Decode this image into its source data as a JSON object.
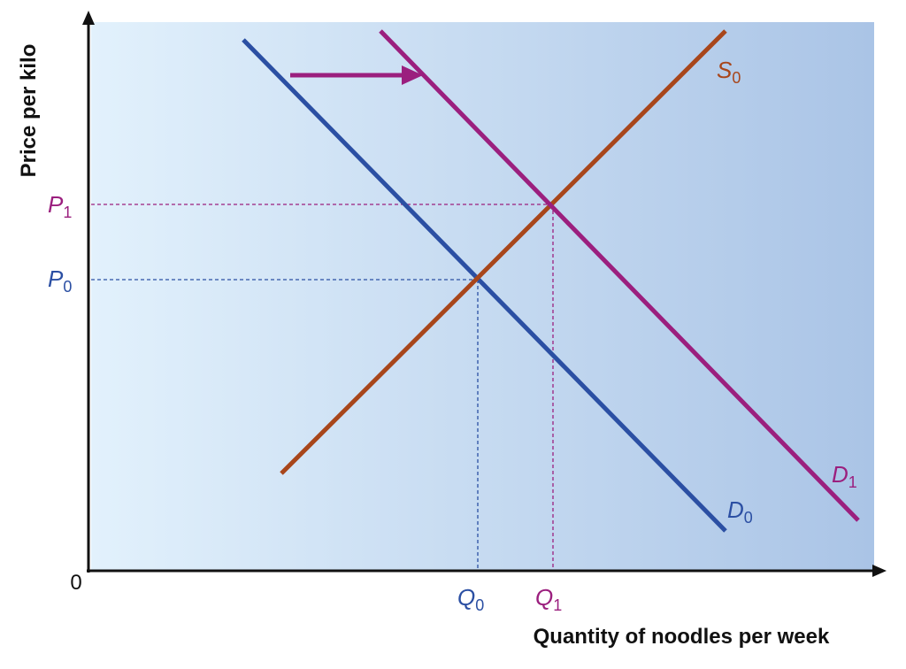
{
  "axes": {
    "y_label": "Price per kilo",
    "x_label": "Quantity of noodles per week",
    "origin": "0"
  },
  "curves": {
    "d0": {
      "base": "D",
      "sub": "0"
    },
    "d1": {
      "base": "D",
      "sub": "1"
    },
    "s0": {
      "base": "S",
      "sub": "0"
    }
  },
  "levels": {
    "p0": {
      "base": "P",
      "sub": "0"
    },
    "p1": {
      "base": "P",
      "sub": "1"
    },
    "q0": {
      "base": "Q",
      "sub": "0"
    },
    "q1": {
      "base": "Q",
      "sub": "1"
    }
  }
}
